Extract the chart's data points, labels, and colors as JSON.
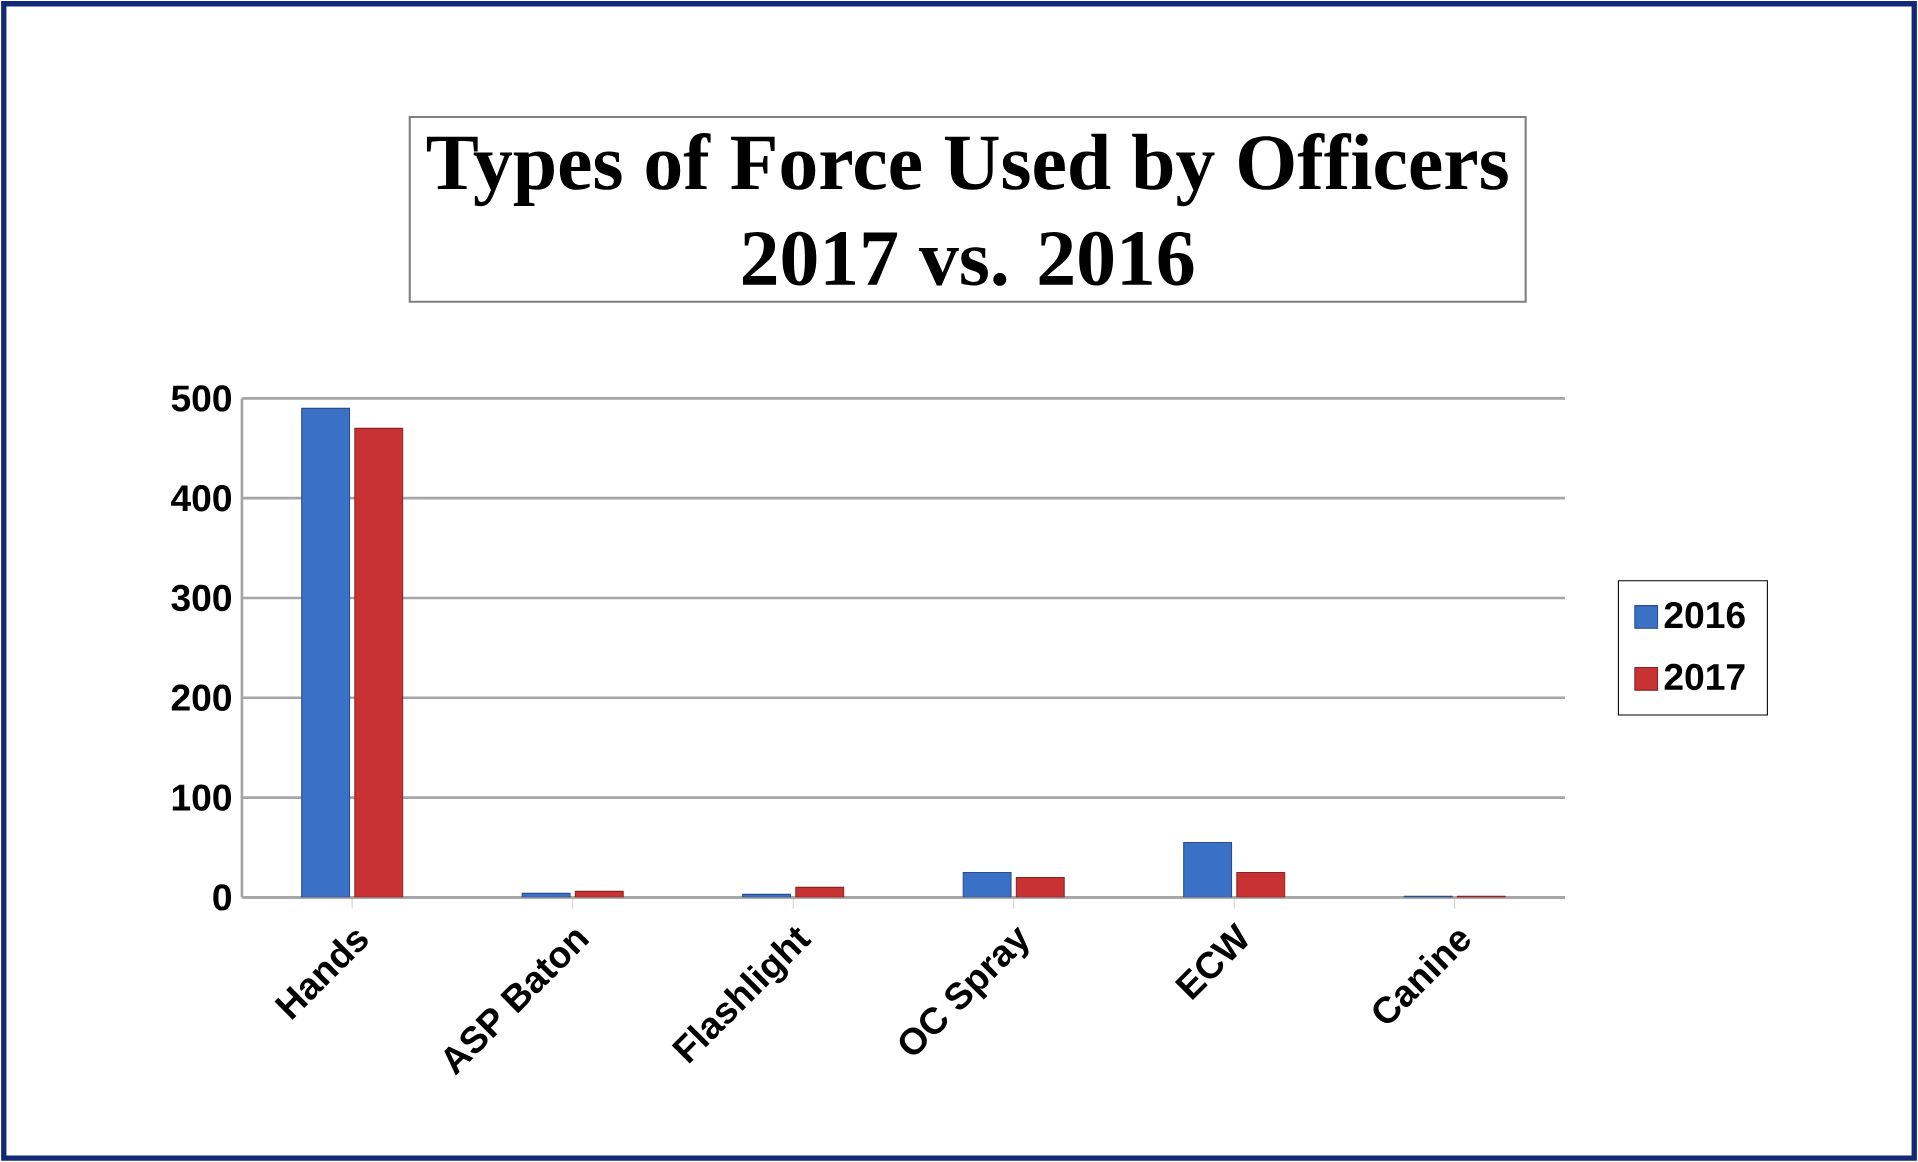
{
  "chart_data": {
    "type": "bar",
    "title": "Types of Force Used by Officers",
    "subtitle": "2017 vs. 2016",
    "categories": [
      "Hands",
      "ASP Baton",
      "Flashlight",
      "OC Spray",
      "ECW",
      "Canine"
    ],
    "series": [
      {
        "name": "2016",
        "color": "#3a70c6",
        "values": [
          490,
          4,
          3,
          25,
          55,
          1
        ]
      },
      {
        "name": "2017",
        "color": "#c83232",
        "values": [
          470,
          6,
          10,
          20,
          25,
          1
        ]
      }
    ],
    "ylim": [
      0,
      500
    ],
    "yticks": [
      0,
      100,
      200,
      300,
      400,
      500
    ],
    "grid": "y",
    "legend": "right"
  }
}
